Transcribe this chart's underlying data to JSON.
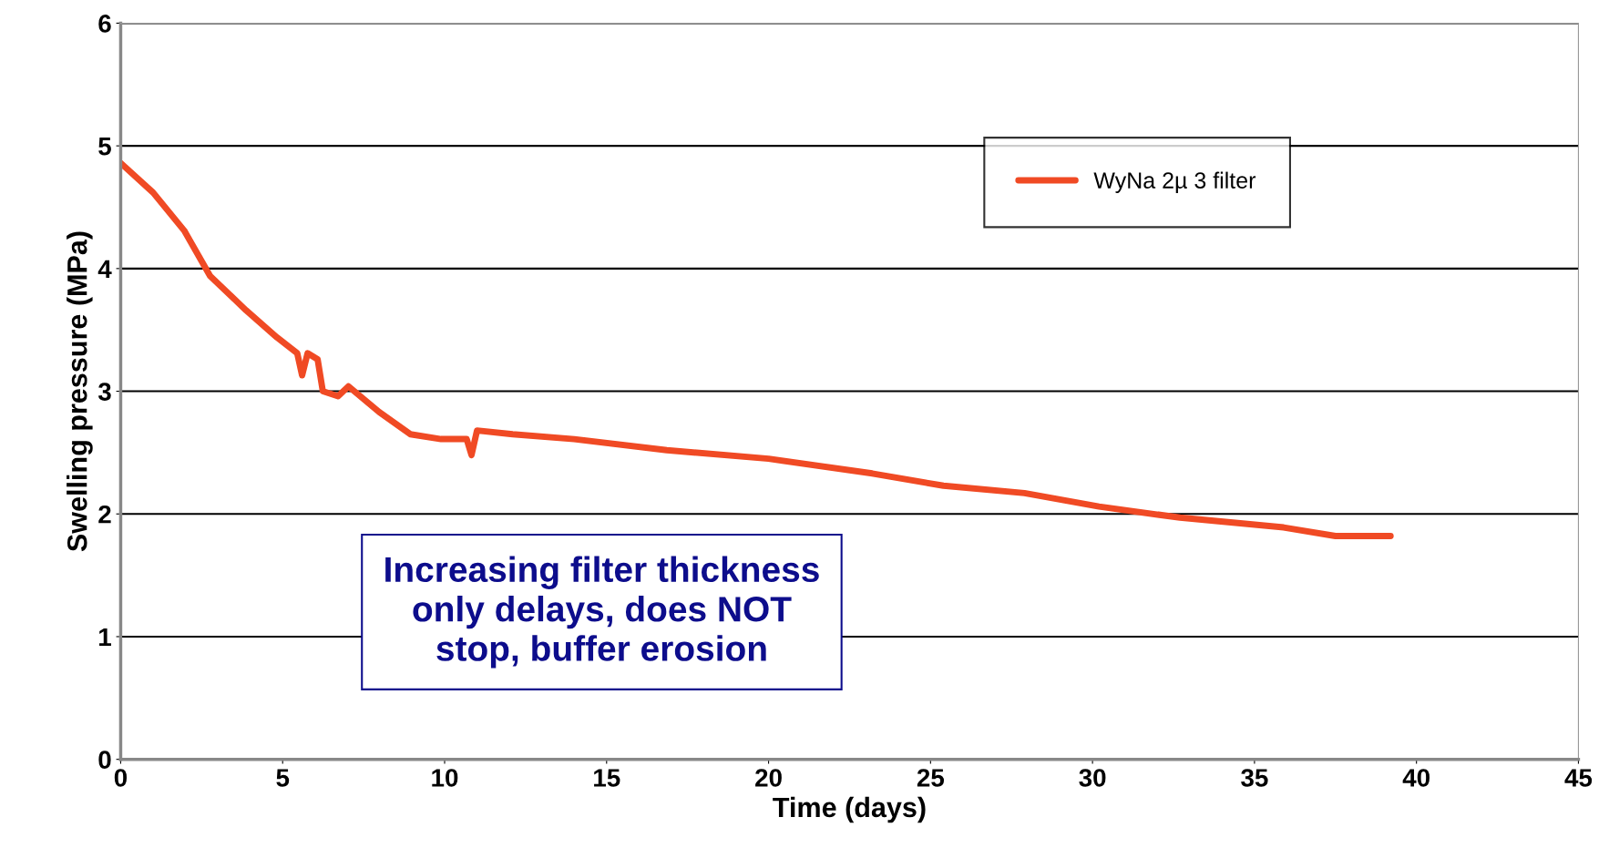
{
  "chart_data": {
    "type": "line",
    "xlabel": "Time (days)",
    "ylabel": "Swelling pressure (MPa)",
    "xlim": [
      0,
      45
    ],
    "xticks": [
      0,
      5,
      10,
      15,
      20,
      25,
      30,
      35,
      40,
      45
    ],
    "ylim": [
      0,
      6
    ],
    "yticks": [
      0,
      1,
      2,
      3,
      4,
      5,
      6
    ],
    "grid": "y",
    "legend": "top right",
    "marker": "none",
    "line_style": "solid",
    "annotations": [
      "Increasing filter thickness\nonly delays, does NOT\nstop, buffer erosion"
    ],
    "series": [
      {
        "name": "WyNa 2µ 3 filter",
        "color": "#f04a24",
        "x": [
          0,
          1.0,
          1.96,
          2.76,
          3.87,
          4.82,
          5.45,
          5.6,
          5.77,
          6.08,
          6.24,
          6.71,
          7.03,
          7.98,
          8.94,
          9.89,
          10.68,
          10.83,
          11.0,
          12.1,
          14.0,
          16.86,
          20.0,
          23.2,
          25.4,
          27.9,
          30.2,
          32.7,
          35.9,
          37.5,
          39.2
        ],
        "values": [
          4.86,
          4.62,
          4.31,
          3.94,
          3.66,
          3.44,
          3.31,
          3.13,
          3.31,
          3.26,
          3.0,
          2.96,
          3.04,
          2.83,
          2.65,
          2.61,
          2.61,
          2.48,
          2.68,
          2.65,
          2.61,
          2.52,
          2.45,
          2.33,
          2.23,
          2.17,
          2.06,
          1.97,
          1.89,
          1.82,
          1.82
        ]
      }
    ]
  }
}
